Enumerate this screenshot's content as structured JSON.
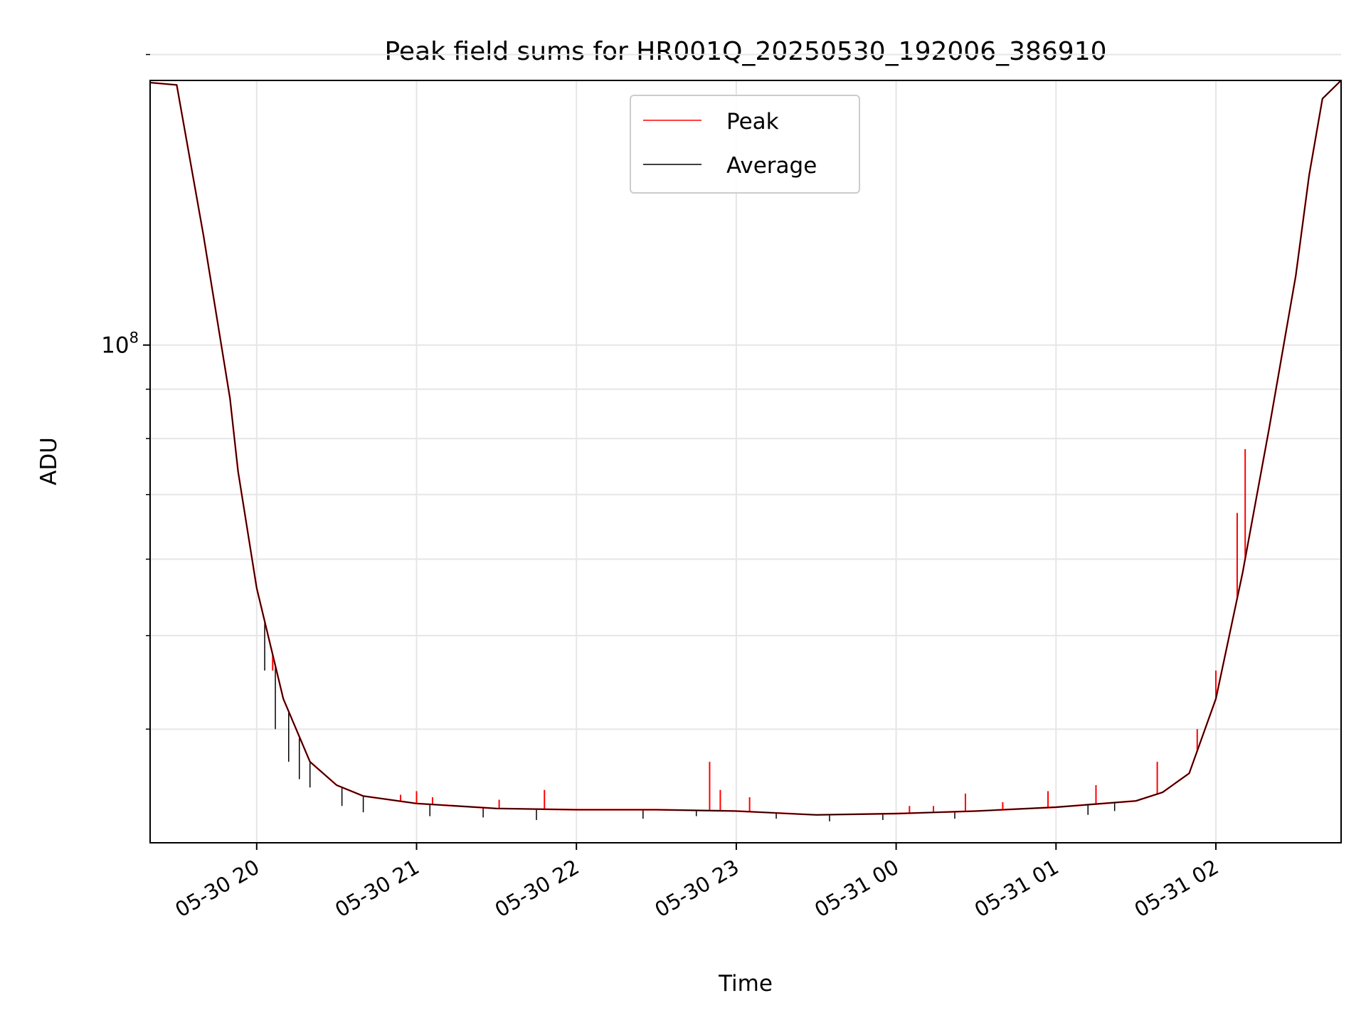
{
  "chart_data": {
    "type": "line",
    "title": "Peak field sums for HR001Q_20250530_192006_386910",
    "xlabel": "Time",
    "ylabel": "ADU",
    "y_scale": "log",
    "grid": true,
    "legend_position": "top-center",
    "x_range": [
      "2025-05-30 19:20",
      "2025-05-31 02:47"
    ],
    "y_range": [
      30500000,
      188000000
    ],
    "x_tick_labels": [
      "05-30 20",
      "05-30 21",
      "05-30 22",
      "05-30 23",
      "05-31 00",
      "05-31 01",
      "05-31 02"
    ],
    "x_tick_times": [
      "2025-05-30 20:00",
      "2025-05-30 21:00",
      "2025-05-30 22:00",
      "2025-05-30 23:00",
      "2025-05-31 00:00",
      "2025-05-31 01:00",
      "2025-05-31 02:00"
    ],
    "y_major_tick_values": [
      100000000
    ],
    "y_major_tick_labels": [
      {
        "base": "10",
        "exp": "8"
      }
    ],
    "y_minor_tick_values": [
      40000000,
      50000000,
      60000000,
      70000000,
      80000000,
      90000000,
      200000000
    ],
    "x": [
      "19:20",
      "19:30",
      "19:40",
      "19:50",
      "19:53",
      "20:00",
      "20:10",
      "20:20",
      "20:30",
      "20:40",
      "21:00",
      "21:30",
      "22:00",
      "22:30",
      "23:00",
      "23:30",
      "00:00",
      "00:30",
      "01:00",
      "01:30",
      "01:40",
      "01:50",
      "02:00",
      "02:10",
      "02:20",
      "02:30",
      "02:35",
      "02:40",
      "02:47"
    ],
    "series": [
      {
        "name": "Peak",
        "color": "#ff0000",
        "values": [
          187000000,
          186000000,
          130000000,
          88000000,
          74000000,
          56000000,
          43000000,
          37000000,
          35000000,
          34100000,
          33500000,
          33100000,
          33000000,
          33000000,
          32900000,
          32600000,
          32700000,
          32900000,
          33200000,
          33700000,
          34400000,
          36000000,
          43000000,
          58000000,
          82000000,
          118000000,
          150000000,
          180000000,
          188000000
        ]
      },
      {
        "name": "Average",
        "color": "#000000",
        "values": [
          187000000,
          186000000,
          130000000,
          88000000,
          74000000,
          56000000,
          43000000,
          37000000,
          35000000,
          34100000,
          33500000,
          33100000,
          33000000,
          33000000,
          32900000,
          32600000,
          32700000,
          32900000,
          33200000,
          33700000,
          34400000,
          36000000,
          43000000,
          58000000,
          82000000,
          118000000,
          150000000,
          180000000,
          188000000
        ]
      }
    ],
    "peak_spikes": [
      {
        "t": "20:06",
        "value": 46000000
      },
      {
        "t": "20:54",
        "value": 34200000
      },
      {
        "t": "21:00",
        "value": 34500000
      },
      {
        "t": "21:06",
        "value": 34000000
      },
      {
        "t": "21:31",
        "value": 33800000
      },
      {
        "t": "21:48",
        "value": 34600000
      },
      {
        "t": "22:50",
        "value": 37000000
      },
      {
        "t": "22:54",
        "value": 34600000
      },
      {
        "t": "23:05",
        "value": 34000000
      },
      {
        "t": "00:05",
        "value": 33300000
      },
      {
        "t": "00:14",
        "value": 33300000
      },
      {
        "t": "00:26",
        "value": 34300000
      },
      {
        "t": "00:40",
        "value": 33600000
      },
      {
        "t": "00:57",
        "value": 34500000
      },
      {
        "t": "01:15",
        "value": 35000000
      },
      {
        "t": "01:38",
        "value": 37000000
      },
      {
        "t": "01:53",
        "value": 40000000
      },
      {
        "t": "02:00",
        "value": 46000000
      },
      {
        "t": "02:08",
        "value": 67000000
      },
      {
        "t": "02:11",
        "value": 78000000
      }
    ],
    "average_dips": [
      {
        "t": "20:03",
        "value": 46000000
      },
      {
        "t": "20:07",
        "value": 40000000
      },
      {
        "t": "20:12",
        "value": 37000000
      },
      {
        "t": "20:16",
        "value": 35500000
      },
      {
        "t": "20:20",
        "value": 34800000
      },
      {
        "t": "20:32",
        "value": 33300000
      },
      {
        "t": "20:40",
        "value": 32800000
      },
      {
        "t": "21:05",
        "value": 32500000
      },
      {
        "t": "21:25",
        "value": 32400000
      },
      {
        "t": "21:45",
        "value": 32200000
      },
      {
        "t": "22:25",
        "value": 32300000
      },
      {
        "t": "22:45",
        "value": 32500000
      },
      {
        "t": "23:15",
        "value": 32300000
      },
      {
        "t": "23:35",
        "value": 32100000
      },
      {
        "t": "23:55",
        "value": 32200000
      },
      {
        "t": "00:22",
        "value": 32300000
      },
      {
        "t": "01:12",
        "value": 32600000
      },
      {
        "t": "01:22",
        "value": 32900000
      }
    ]
  }
}
